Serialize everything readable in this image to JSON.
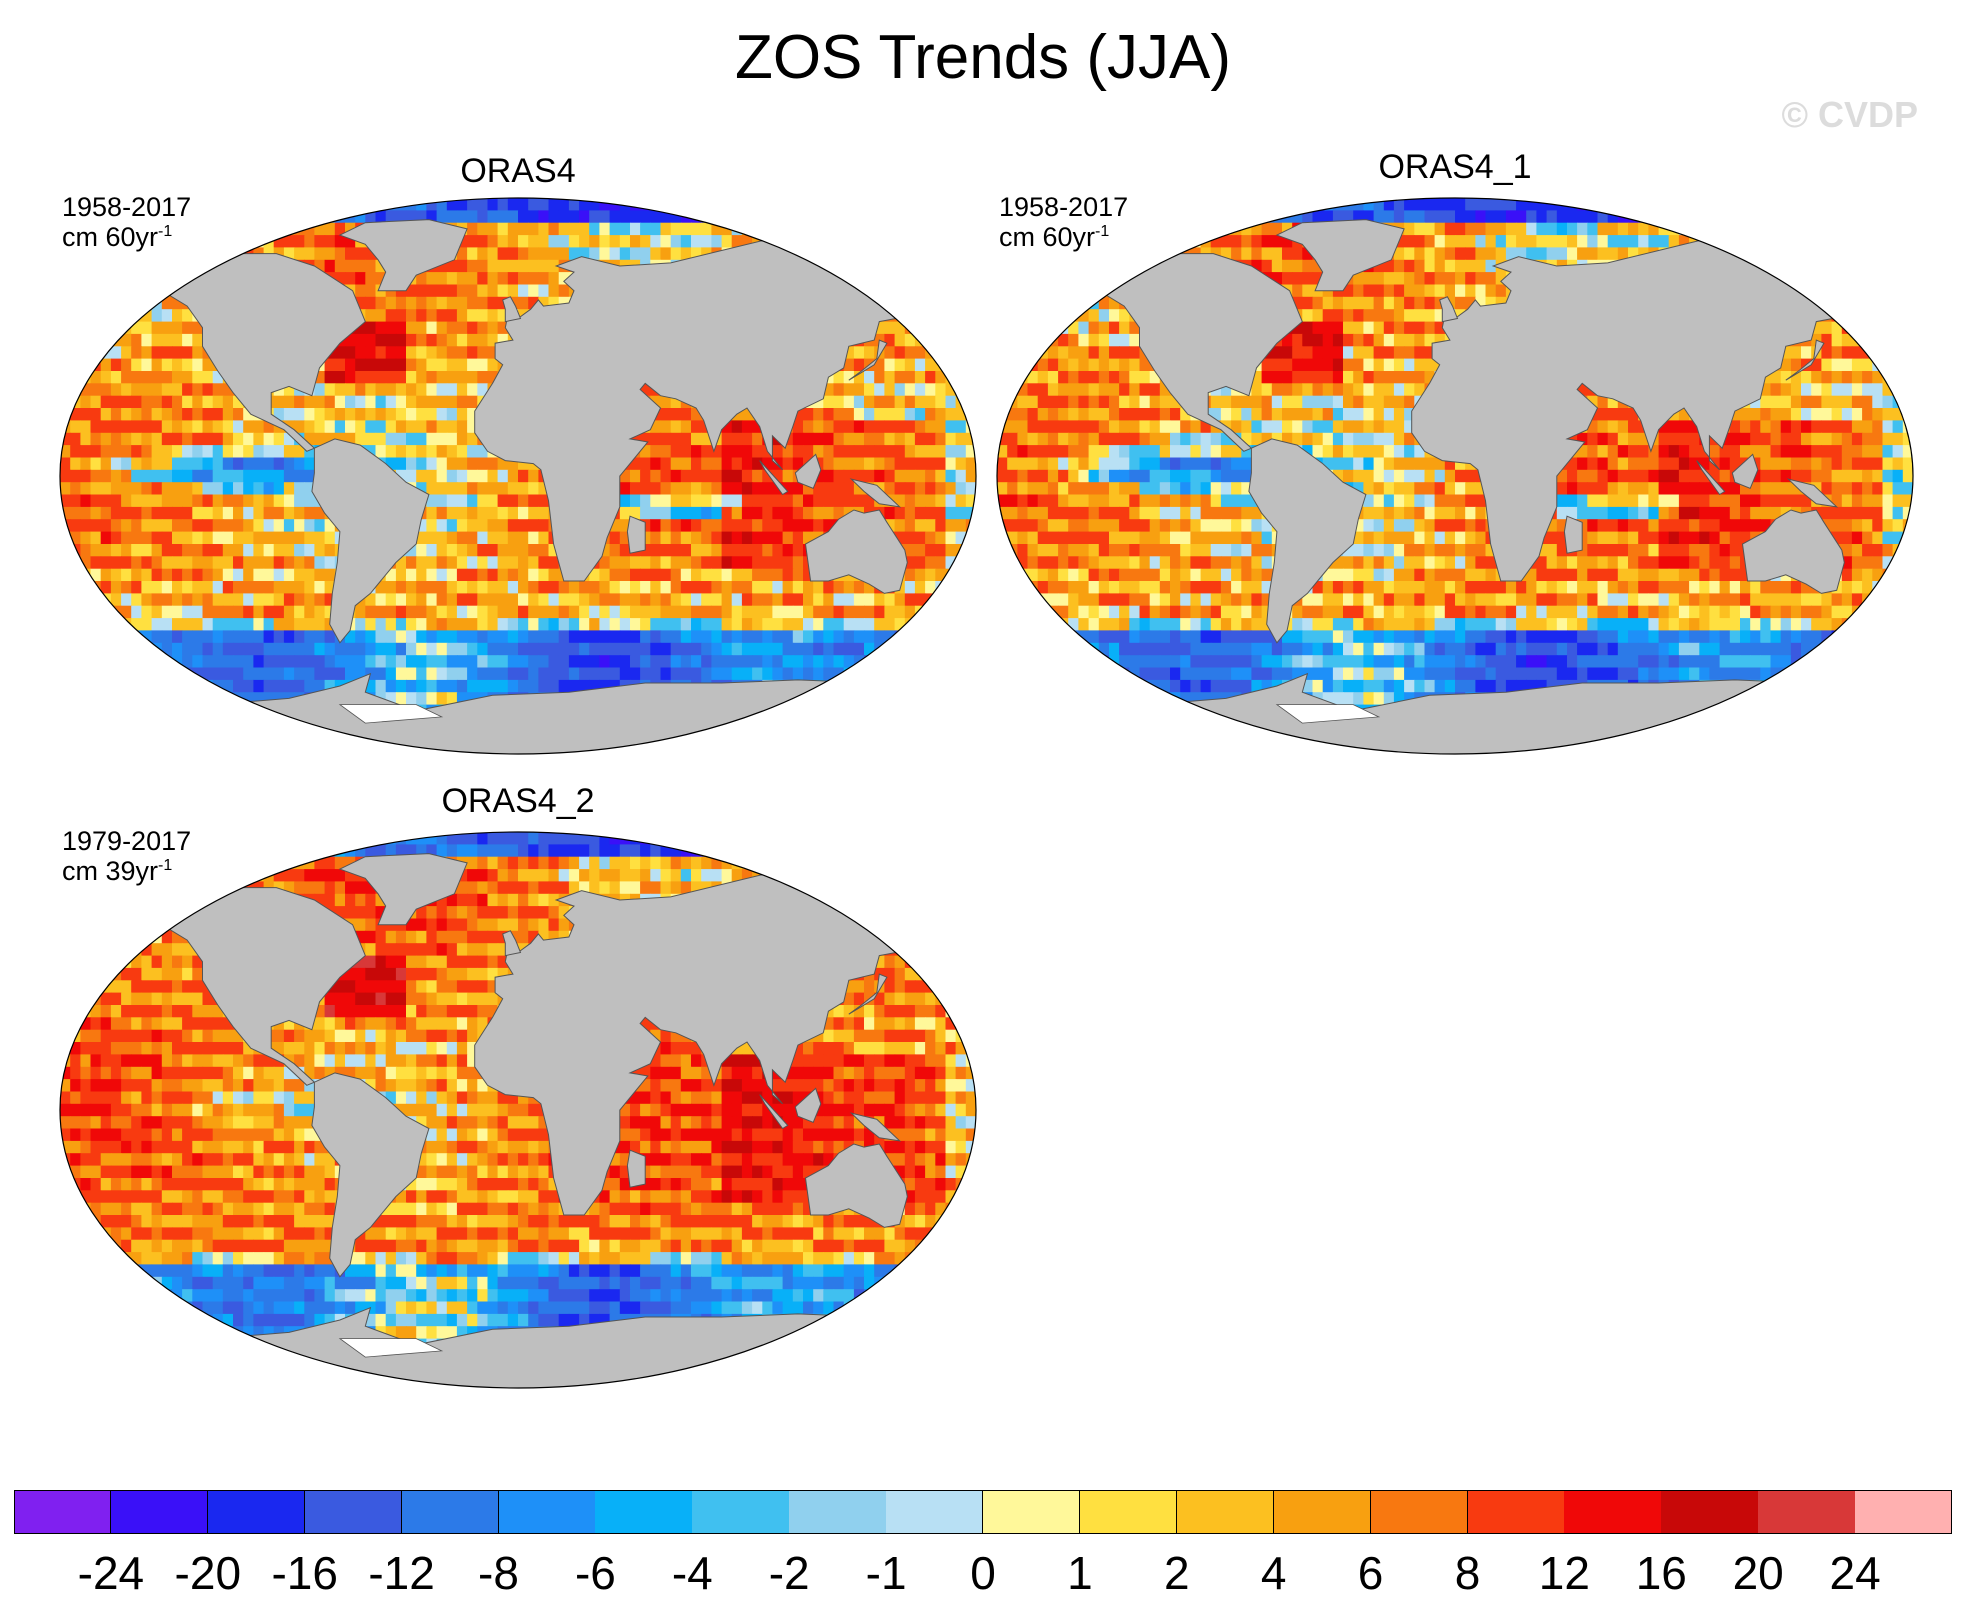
{
  "title": "ZOS Trends (JJA)",
  "watermark": "© CVDP",
  "colors": {
    "land": "#bfbfbf",
    "coast": "#555555",
    "ice": "#ffffff"
  },
  "chart_data": {
    "type": "heatmap",
    "projection": "robinson",
    "panels": [
      {
        "name": "ORAS4",
        "period": "1958-2017",
        "unit_prefix": "cm 60yr",
        "unit_sup": "-1",
        "variant": 0
      },
      {
        "name": "ORAS4_1",
        "period": "1958-2017",
        "unit_prefix": "cm 60yr",
        "unit_sup": "-1",
        "variant": 1
      },
      {
        "name": "ORAS4_2",
        "period": "1979-2017",
        "unit_prefix": "cm 39yr",
        "unit_sup": "-1",
        "variant": 2
      }
    ],
    "colorbar": {
      "labels": [
        "-24",
        "-20",
        "-16",
        "-12",
        "-8",
        "-6",
        "-4",
        "-2",
        "-1",
        "0",
        "1",
        "2",
        "4",
        "6",
        "8",
        "12",
        "16",
        "20",
        "24"
      ],
      "colors": [
        "#8020f0",
        "#3a10f8",
        "#1a28f0",
        "#3a5ae0",
        "#2c7ae8",
        "#1e90f8",
        "#08b0f8",
        "#40c0f0",
        "#90d0ee",
        "#b8e0f4",
        "#fff89a",
        "#ffe040",
        "#fcc020",
        "#f8a010",
        "#f87810",
        "#f83a10",
        "#f00808",
        "#c80808",
        "#d83838",
        "#ffb0b0"
      ]
    }
  }
}
